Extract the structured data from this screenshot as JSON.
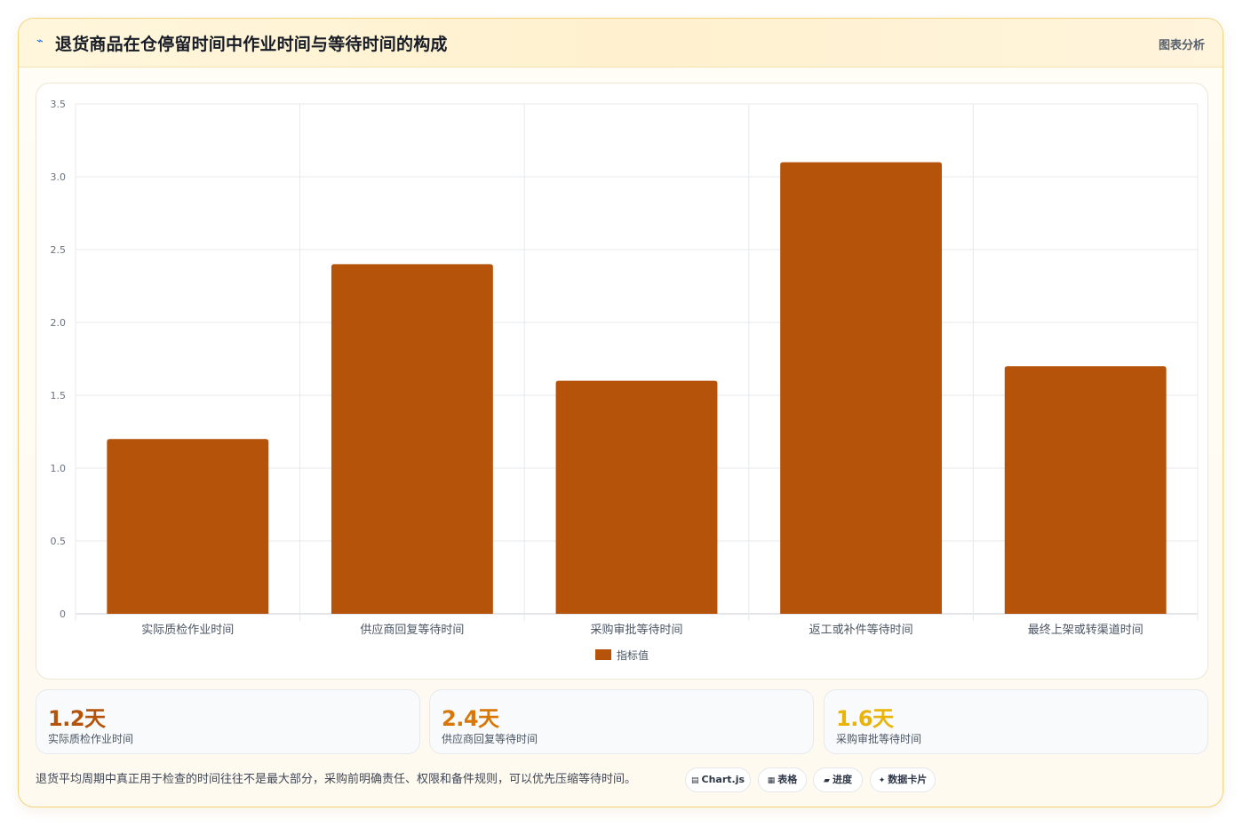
{
  "header": {
    "title_icon": "chart-line-icon",
    "title": "退货商品在仓停留时间中作业时间与等待时间的构成",
    "tag": "图表分析"
  },
  "chart_data": {
    "type": "bar",
    "categories": [
      "实际质检作业时间",
      "供应商回复等待时间",
      "采购审批等待时间",
      "返工或补件等待时间",
      "最终上架或转渠道时间"
    ],
    "series": [
      {
        "name": "指标值",
        "values": [
          1.2,
          2.4,
          1.6,
          3.1,
          1.7
        ],
        "color": "#b45309"
      }
    ],
    "ylim": [
      0,
      3.5
    ],
    "yticks": [
      "0",
      "0.5",
      "1.0",
      "1.5",
      "2.0",
      "2.5",
      "3.0",
      "3.5"
    ],
    "grid": true,
    "legend_position": "bottom"
  },
  "kpis": [
    {
      "value": "1.2天",
      "label": "实际质检作业时间",
      "color": "#b45309"
    },
    {
      "value": "2.4天",
      "label": "供应商回复等待时间",
      "color": "#d97706"
    },
    {
      "value": "1.6天",
      "label": "采购审批等待时间",
      "color": "#eab308"
    }
  ],
  "footnote": "退货平均周期中真正用于检查的时间往往不是最大部分，采购前明确责任、权限和备件规则，可以优先压缩等待时间。",
  "pills": [
    {
      "icon": "▤",
      "label": "Chart.js",
      "icon_name": "chart-icon"
    },
    {
      "icon": "▦",
      "label": "表格",
      "icon_name": "table-icon"
    },
    {
      "icon": "▰",
      "label": "进度",
      "icon_name": "progress-icon"
    },
    {
      "icon": "✦",
      "label": "数据卡片",
      "icon_name": "sparkle-icon"
    }
  ]
}
